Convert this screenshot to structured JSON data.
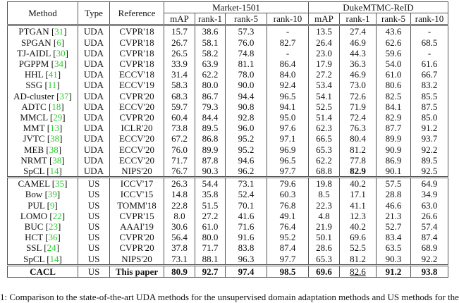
{
  "header": {
    "method": "Method",
    "type": "Type",
    "reference": "Reference",
    "datasets": [
      "Market-1501",
      "DukeMTMC-ReID"
    ],
    "metrics": [
      "mAP",
      "rank-1",
      "rank-5",
      "rank-10",
      "mAP",
      "rank-1",
      "rank-5",
      "rank-10"
    ]
  },
  "citation_color": "#2ecc2e",
  "sections": [
    {
      "rows": [
        {
          "method": "PTGAN",
          "cite": "31",
          "type": "UDA",
          "ref": "CVPR'18",
          "values": [
            "15.7",
            "38.6",
            "57.3",
            "-",
            "13.5",
            "27.4",
            "43.6",
            "-"
          ]
        },
        {
          "method": "SPGAN",
          "cite": "6",
          "type": "UDA",
          "ref": "CVPR'18",
          "values": [
            "26.7",
            "58.1",
            "76.0",
            "82.7",
            "26.4",
            "46.9",
            "62.6",
            "68.5"
          ]
        },
        {
          "method": "TJ-AIDL",
          "cite": "30",
          "type": "UDA",
          "ref": "CVPR'18",
          "values": [
            "26.5",
            "58.2",
            "74.8",
            "-",
            "23.0",
            "44.3",
            "59.6",
            "-"
          ]
        },
        {
          "method": "PGPPM",
          "cite": "34",
          "type": "UDA",
          "ref": "CVPR'18",
          "values": [
            "33.9",
            "63.9",
            "81.1",
            "86.4",
            "17.9",
            "36.3",
            "54.0",
            "61.6"
          ]
        },
        {
          "method": "HHL",
          "cite": "41",
          "type": "UDA",
          "ref": "ECCV'18",
          "values": [
            "31.4",
            "62.2",
            "78.0",
            "84.0",
            "27.2",
            "46.9",
            "61.0",
            "66.7"
          ]
        },
        {
          "method": "SSG",
          "cite": "11",
          "type": "UDA",
          "ref": "ECCV'19",
          "values": [
            "58.3",
            "80.0",
            "90.0",
            "92.4",
            "53.4",
            "73.0",
            "80.6",
            "83.2"
          ]
        },
        {
          "method": "AD-cluster",
          "cite": "37",
          "type": "UDA",
          "ref": "CVPR'20",
          "values": [
            "68.3",
            "86.7",
            "94.4",
            "96.5",
            "54.1",
            "72.6",
            "82.5",
            "85.5"
          ]
        },
        {
          "method": "ADTC",
          "cite": "18",
          "type": "UDA",
          "ref": "ECCV'20",
          "values": [
            "59.7",
            "79.3",
            "90.8",
            "94.1",
            "52.5",
            "71.9",
            "84.1",
            "87.5"
          ]
        },
        {
          "method": "MMCL",
          "cite": "29",
          "type": "UDA",
          "ref": "CVPR'20",
          "values": [
            "60.4",
            "84.4",
            "92.8",
            "95.0",
            "51.4",
            "72.4",
            "82.9",
            "85.0"
          ]
        },
        {
          "method": "MMT",
          "cite": "13",
          "type": "UDA",
          "ref": "ICLR'20",
          "values": [
            "73.8",
            "89.5",
            "96.0",
            "97.6",
            "62.3",
            "76.3",
            "87.7",
            "91.2"
          ]
        },
        {
          "method": "JVTC",
          "cite": "38",
          "type": "UDA",
          "ref": "ECCV'20",
          "values": [
            "67.2",
            "86.8",
            "95.2",
            "97.1",
            "66.5",
            "80.4",
            "89.9",
            "93.7"
          ]
        },
        {
          "method": "MEB",
          "cite": "38",
          "type": "UDA",
          "ref": "ECCV'20",
          "values": [
            "76.0",
            "89.9",
            "95.2",
            "96.9",
            "65.3",
            "81.2",
            "90.9",
            "92.2"
          ]
        },
        {
          "method": "NRMT",
          "cite": "38",
          "type": "UDA",
          "ref": "ECCV'20",
          "values": [
            "71.7",
            "87.8",
            "94.6",
            "96.5",
            "62.2",
            "77.8",
            "86.9",
            "89.5"
          ]
        },
        {
          "method": "SpCL",
          "cite": "14",
          "type": "UDA",
          "ref": "NIPS'20",
          "values": [
            "76.7",
            "90.3",
            "96.2",
            "97.7",
            "68.8",
            "82.9",
            "90.1",
            "92.5"
          ],
          "bold_cells": [
            5
          ]
        }
      ]
    },
    {
      "rows": [
        {
          "method": "CAMEL",
          "cite": "35",
          "type": "US",
          "ref": "ICCV'17",
          "values": [
            "26.3",
            "54.4",
            "73.1",
            "79.6",
            "19.8",
            "40.2",
            "57.5",
            "64.9"
          ]
        },
        {
          "method": "Bow",
          "cite": "39",
          "type": "US",
          "ref": "ICCV'15",
          "values": [
            "14.8",
            "35.8",
            "52.4",
            "60.3",
            "8.5",
            "17.1",
            "28.8",
            "34.9"
          ]
        },
        {
          "method": "PUL",
          "cite": "9",
          "type": "US",
          "ref": "TOMM'18",
          "values": [
            "22.8",
            "51.5",
            "70.1",
            "76.8",
            "22.3",
            "41.1",
            "46.6",
            "63.0"
          ]
        },
        {
          "method": "LOMO",
          "cite": "22",
          "type": "US",
          "ref": "CVPR'15",
          "values": [
            "8.0",
            "27.2",
            "41.6",
            "49.1",
            "4.8",
            "12.3",
            "21.3",
            "26.6"
          ]
        },
        {
          "method": "BUC",
          "cite": "23",
          "type": "US",
          "ref": "AAAI'19",
          "values": [
            "30.6",
            "61.0",
            "71.6",
            "76.4",
            "21.9",
            "40.2",
            "52.7",
            "57.4"
          ]
        },
        {
          "method": "HCT",
          "cite": "36",
          "type": "US",
          "ref": "CVPR'20",
          "values": [
            "56.4",
            "80.0",
            "91.6",
            "95.2",
            "50.1",
            "69.6",
            "83.4",
            "87.4"
          ]
        },
        {
          "method": "SSL",
          "cite": "24",
          "type": "US",
          "ref": "CVPR'20",
          "values": [
            "37.8",
            "71.7",
            "83.8",
            "87.4",
            "28.6",
            "52.5",
            "63.5",
            "68.9"
          ]
        },
        {
          "method": "SpCL",
          "cite": "14",
          "type": "US",
          "ref": "NIPS'20",
          "values": [
            "73.1",
            "88.1",
            "96.3",
            "97.7",
            "65.3",
            "81.2",
            "90.3",
            "92.2"
          ]
        }
      ]
    },
    {
      "rows": [
        {
          "method": "CACL",
          "cite": "",
          "type": "US",
          "ref": "This paper",
          "values": [
            "80.9",
            "92.7",
            "97.4",
            "98.5",
            "69.6",
            "82.6",
            "91.2",
            "93.8"
          ],
          "bold_method": true,
          "bold_ref": true,
          "bold_cells": [
            0,
            1,
            2,
            3,
            4,
            6,
            7
          ],
          "underline_cells": [
            5
          ]
        }
      ]
    }
  ],
  "caption": "1: Comparison to the state-of-the-art UDA methods for the unsupervised domain adaptation methods and US methods for the"
}
